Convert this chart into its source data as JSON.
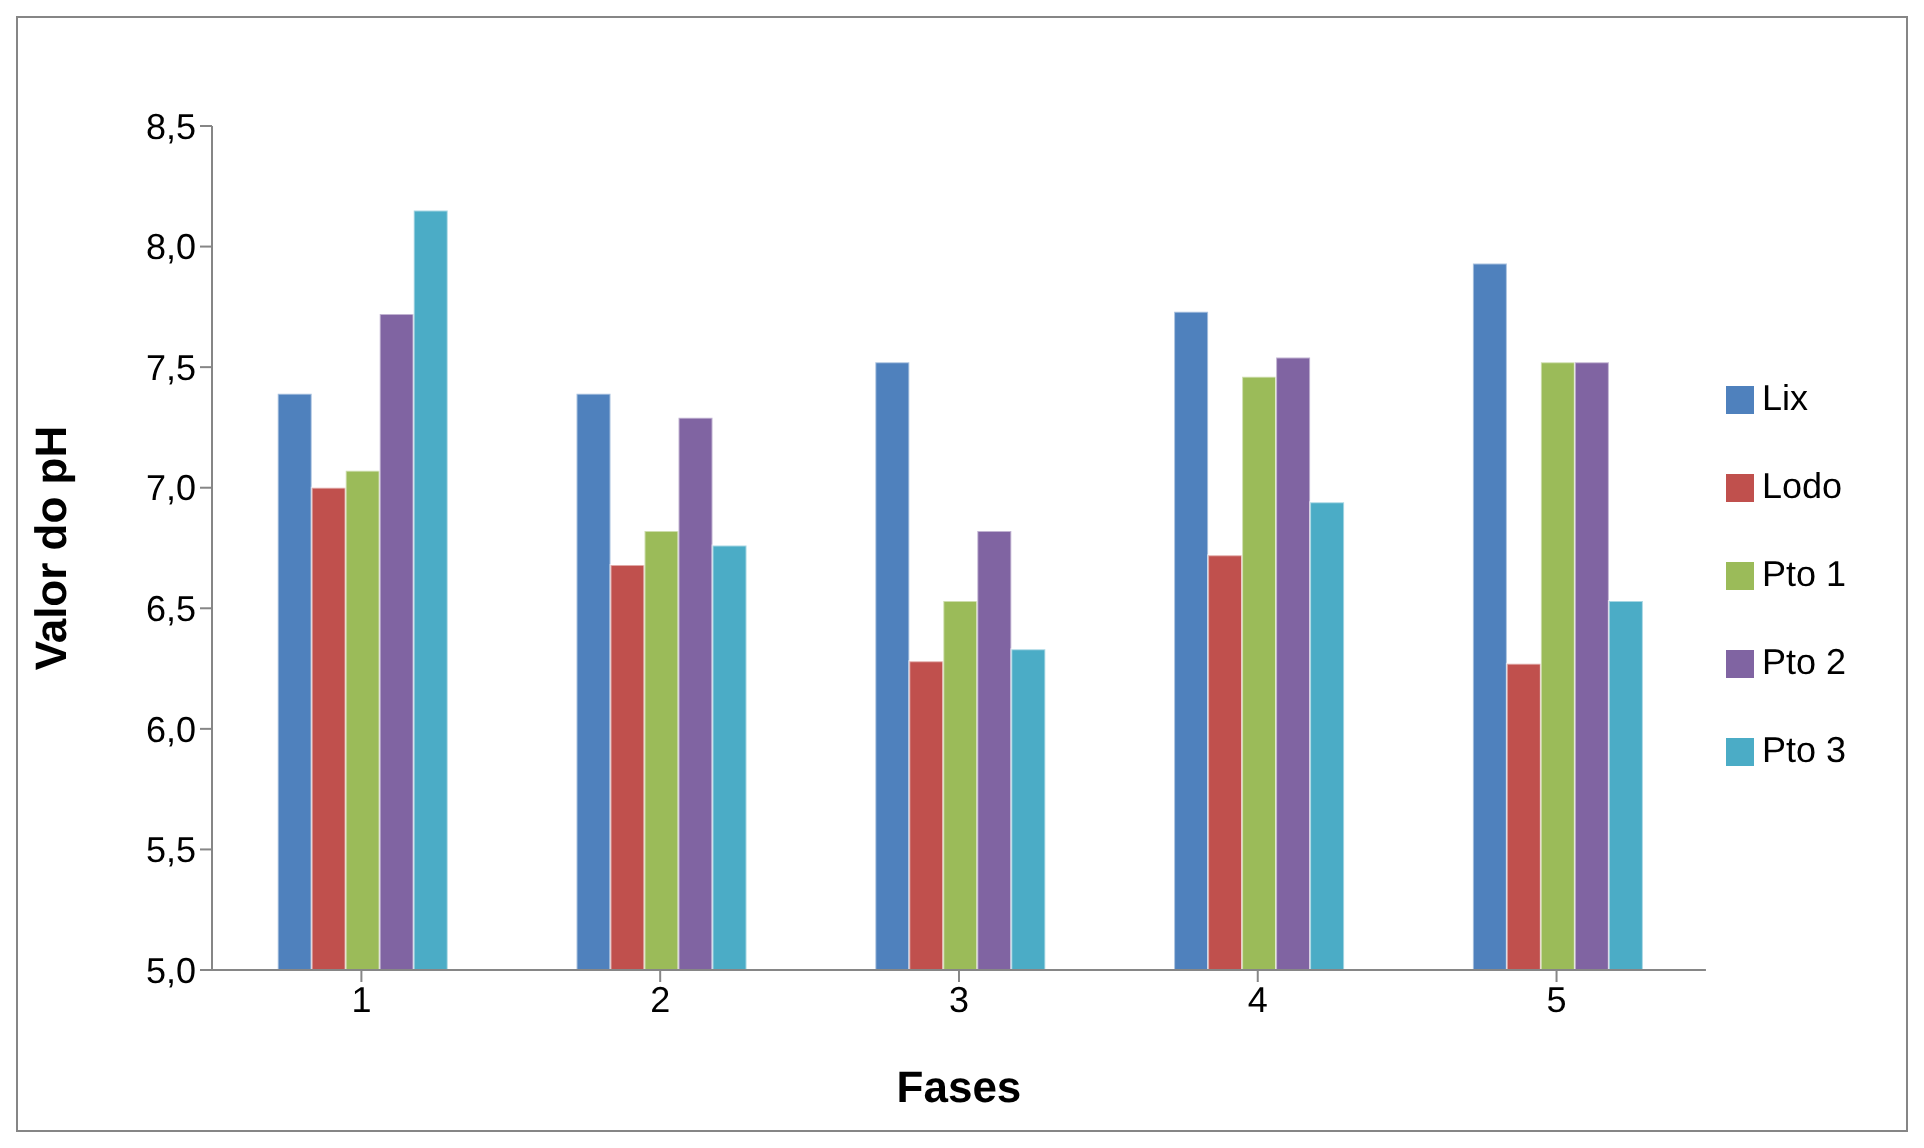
{
  "chart_data": {
    "type": "bar",
    "xlabel": "Fases",
    "ylabel": "Valor do pH",
    "categories": [
      "1",
      "2",
      "3",
      "4",
      "5"
    ],
    "series": [
      {
        "name": "Lix",
        "color": "#4f81bd",
        "values": [
          7.39,
          7.39,
          7.52,
          7.73,
          7.93
        ]
      },
      {
        "name": "Lodo",
        "color": "#c0504d",
        "values": [
          7.0,
          6.68,
          6.28,
          6.72,
          6.27
        ]
      },
      {
        "name": "Pto 1",
        "color": "#9bbb59",
        "values": [
          7.07,
          6.82,
          6.53,
          7.46,
          7.52
        ]
      },
      {
        "name": "Pto 2",
        "color": "#8064a2",
        "values": [
          7.72,
          7.29,
          6.82,
          7.54,
          7.52
        ]
      },
      {
        "name": "Pto 3",
        "color": "#4bacc6",
        "values": [
          8.15,
          6.76,
          6.33,
          6.94,
          6.53
        ]
      }
    ],
    "ylim": [
      5.0,
      8.5
    ],
    "yticks": [
      {
        "value": 5.0,
        "label": "5,0"
      },
      {
        "value": 5.5,
        "label": "5,5"
      },
      {
        "value": 6.0,
        "label": "6,0"
      },
      {
        "value": 6.5,
        "label": "6,5"
      },
      {
        "value": 7.0,
        "label": "7,0"
      },
      {
        "value": 7.5,
        "label": "7,5"
      },
      {
        "value": 8.0,
        "label": "8,0"
      },
      {
        "value": 8.5,
        "label": "8,5"
      }
    ],
    "grid": false,
    "legend": "right"
  }
}
